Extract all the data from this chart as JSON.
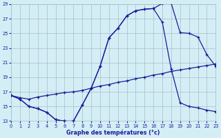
{
  "title": "Graphe des températures (°c)",
  "bg_color": "#d4eef5",
  "grid_color": "#aabbcc",
  "line_color": "#1a1a99",
  "xlim": [
    0,
    23
  ],
  "ylim": [
    13,
    29
  ],
  "yticks": [
    13,
    15,
    17,
    19,
    21,
    23,
    25,
    27,
    29
  ],
  "xticks": [
    0,
    1,
    2,
    3,
    4,
    5,
    6,
    7,
    8,
    9,
    10,
    11,
    12,
    13,
    14,
    15,
    16,
    17,
    18,
    19,
    20,
    21,
    22,
    23
  ],
  "curve1_x": [
    0,
    1,
    2,
    3,
    4,
    5,
    6,
    7,
    8,
    9,
    10,
    11,
    12,
    13,
    14,
    15,
    16,
    17,
    18,
    19,
    20,
    21,
    22,
    23
  ],
  "curve1_y": [
    16.5,
    16.0,
    15.0,
    14.7,
    14.2,
    13.2,
    13.0,
    13.0,
    15.2,
    17.5,
    20.5,
    24.4,
    25.7,
    27.4,
    28.1,
    28.3,
    28.4,
    29.1,
    29.1,
    25.1,
    25.0,
    24.5,
    22.1,
    20.5
  ],
  "curve2_x": [
    0,
    1,
    2,
    3,
    4,
    5,
    6,
    7,
    8,
    9,
    10,
    11,
    12,
    13,
    14,
    15,
    16,
    17,
    18,
    19,
    20,
    21,
    22,
    23
  ],
  "curve2_y": [
    16.5,
    16.0,
    15.0,
    14.7,
    14.2,
    13.2,
    13.0,
    13.0,
    15.2,
    17.5,
    20.5,
    24.4,
    25.7,
    27.4,
    28.1,
    28.3,
    28.4,
    26.5,
    20.1,
    15.5,
    15.0,
    14.8,
    14.5,
    14.3
  ],
  "curve3_x": [
    0,
    1,
    2,
    3,
    4,
    5,
    6,
    7,
    8,
    9,
    10,
    11,
    12,
    13,
    14,
    15,
    16,
    17,
    18,
    19,
    20,
    21,
    22,
    23
  ],
  "curve3_y": [
    16.5,
    16.2,
    16.0,
    16.3,
    16.5,
    16.7,
    16.9,
    17.0,
    17.2,
    17.5,
    17.8,
    18.0,
    18.3,
    18.5,
    18.8,
    19.0,
    19.3,
    19.5,
    19.8,
    20.0,
    20.2,
    20.4,
    20.6,
    20.8
  ]
}
